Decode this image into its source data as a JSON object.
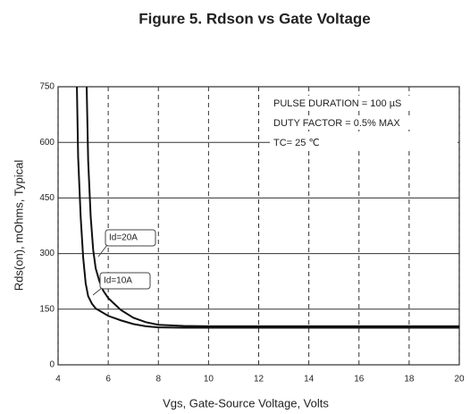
{
  "chart_data": {
    "type": "line",
    "title": "Figure 5.  Rdson vs Gate Voltage",
    "xlabel": "Vgs, Gate-Source Voltage, Volts",
    "ylabel": "Rds(on), mOhms, Typical",
    "series": [
      {
        "name": "Id=20A",
        "color": "#111111",
        "x": [
          5.14,
          5.2,
          5.3,
          5.4,
          5.5,
          5.65,
          5.8,
          6,
          6.5,
          7,
          7.5,
          8,
          9,
          10,
          12,
          14,
          16,
          18,
          20
        ],
        "values": [
          750,
          550,
          400,
          310,
          260,
          225,
          200,
          180,
          148,
          127,
          115,
          108,
          105,
          104,
          104,
          104,
          104,
          104,
          104
        ]
      },
      {
        "name": "Id=10A",
        "color": "#111111",
        "x": [
          4.75,
          4.8,
          4.9,
          5.0,
          5.1,
          5.2,
          5.35,
          5.5,
          6,
          6.5,
          7,
          7.5,
          8,
          9,
          10,
          12,
          14,
          16,
          18,
          20
        ],
        "values": [
          750,
          560,
          400,
          290,
          220,
          185,
          165,
          152,
          132,
          120,
          110,
          104,
          101,
          100,
          100,
          100,
          100,
          100,
          100,
          100
        ]
      }
    ],
    "annotations": [
      "PULSE DURATION = 100 µS",
      "DUTY FACTOR = 0.5% MAX",
      "TC= 25 ℃"
    ],
    "xlim": [
      4,
      20
    ],
    "xticks": [
      4,
      6,
      8,
      10,
      12,
      14,
      16,
      18,
      20
    ],
    "ylim": [
      0,
      750
    ],
    "yticks": [
      0,
      150,
      300,
      450,
      600,
      750
    ],
    "grid": true
  }
}
